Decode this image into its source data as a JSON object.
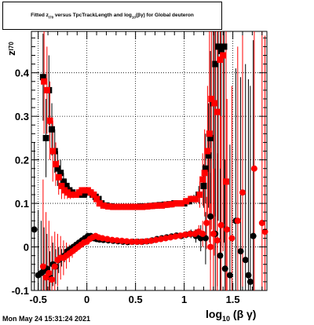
{
  "title": {
    "part1": "Fitted  z",
    "sub1": "I70",
    "part2": "  versus  TpcTrackLength and log",
    "sub2": "10",
    "part3": "(βγ) for Global deuteron"
  },
  "ylabel": {
    "main": "z",
    "sub": "I70"
  },
  "xlabel": {
    "main": "log",
    "sub": "10",
    "rest": "(β γ)"
  },
  "timestamp": "Mon May 24 15:31:24 2021",
  "chart_data": {
    "type": "scatter",
    "xlim": [
      -0.57,
      1.85
    ],
    "ylim": [
      -0.1,
      0.495
    ],
    "grid": true,
    "x_ticks": [
      -0.5,
      0,
      0.5,
      1,
      1.5
    ],
    "x_tick_labels": [
      "-0.5",
      "0",
      "0.5",
      "1",
      "1.5"
    ],
    "y_ticks": [
      -0.1,
      0,
      0.1,
      0.2,
      0.3,
      0.4
    ],
    "y_tick_labels": [
      "-0.1",
      "0",
      "0.1",
      "0.2",
      "0.3",
      "0.4"
    ],
    "series": [
      {
        "marker": "square",
        "color": "#000000",
        "x": [
          -0.45,
          -0.42,
          -0.39,
          -0.36,
          -0.33,
          -0.3,
          -0.27,
          -0.24,
          -0.21,
          -0.18,
          -0.15,
          -0.12,
          -0.09,
          -0.06,
          -0.03,
          0.0,
          0.03,
          0.06,
          0.09,
          0.12,
          0.15,
          0.2,
          0.25,
          0.3,
          0.35,
          0.4,
          0.45,
          0.5,
          0.55,
          0.6,
          0.65,
          0.7,
          0.75,
          0.8,
          0.85,
          0.9,
          0.95,
          1.0,
          1.05,
          1.1,
          1.15,
          1.2,
          1.22,
          1.25,
          1.27,
          1.3,
          1.32,
          1.35,
          1.38,
          1.41
        ],
        "y": [
          0.39,
          0.25,
          0.36,
          0.27,
          0.22,
          0.18,
          0.17,
          0.15,
          0.14,
          0.13,
          0.125,
          0.12,
          0.12,
          0.125,
          0.12,
          0.125,
          0.125,
          0.12,
          0.115,
          0.11,
          0.1,
          0.095,
          0.093,
          0.092,
          0.092,
          0.092,
          0.092,
          0.092,
          0.093,
          0.093,
          0.094,
          0.095,
          0.096,
          0.097,
          0.098,
          0.1,
          0.1,
          0.1,
          0.105,
          0.11,
          0.12,
          0.14,
          0.18,
          0.21,
          0.25,
          0.33,
          0.42,
          0.46,
          0.45,
          0.46
        ],
        "yerr": [
          0.1,
          0.09,
          0.08,
          0.06,
          0.05,
          0.04,
          0.03,
          0.02,
          0.015,
          0.01,
          0.008,
          0.006,
          0.005,
          0.004,
          0.004,
          0.003,
          0.003,
          0.003,
          0.003,
          0.003,
          0.003,
          0.003,
          0.003,
          0.003,
          0.003,
          0.003,
          0.003,
          0.003,
          0.003,
          0.003,
          0.003,
          0.003,
          0.003,
          0.003,
          0.004,
          0.004,
          0.005,
          0.006,
          0.008,
          0.01,
          0.02,
          0.05,
          0.08,
          0.12,
          0.2,
          0.3,
          0.35,
          0.4,
          0.45,
          0.45
        ]
      },
      {
        "marker": "square",
        "color": "#ff0000",
        "x": [
          -0.44,
          -0.41,
          -0.38,
          -0.35,
          -0.32,
          -0.29,
          -0.26,
          -0.23,
          -0.2,
          -0.17,
          -0.14,
          -0.11,
          -0.08,
          -0.05,
          -0.02,
          0.01,
          0.04,
          0.07,
          0.1,
          0.13,
          0.17,
          0.22,
          0.27,
          0.32,
          0.37,
          0.42,
          0.47,
          0.52,
          0.57,
          0.62,
          0.67,
          0.72,
          0.77,
          0.82,
          0.87,
          0.92,
          0.97,
          1.02,
          1.07,
          1.12,
          1.16,
          1.19,
          1.21,
          1.24,
          1.26,
          1.28,
          1.31,
          1.34,
          1.37,
          1.4,
          1.43
        ],
        "y": [
          0.38,
          0.36,
          0.29,
          0.22,
          0.19,
          0.16,
          0.14,
          0.13,
          0.125,
          0.12,
          0.12,
          0.12,
          0.125,
          0.13,
          0.13,
          0.13,
          0.125,
          0.12,
          0.11,
          0.1,
          0.095,
          0.093,
          0.092,
          0.092,
          0.092,
          0.092,
          0.092,
          0.092,
          0.092,
          0.093,
          0.094,
          0.095,
          0.095,
          0.097,
          0.098,
          0.1,
          0.1,
          0.105,
          0.11,
          0.11,
          0.12,
          0.155,
          0.17,
          0.22,
          0.26,
          0.34,
          0.33,
          0.31,
          0.43,
          0.44,
          0.15
        ],
        "yerr": [
          0.12,
          0.1,
          0.09,
          0.07,
          0.05,
          0.04,
          0.03,
          0.02,
          0.015,
          0.01,
          0.008,
          0.006,
          0.005,
          0.004,
          0.004,
          0.003,
          0.003,
          0.003,
          0.003,
          0.003,
          0.003,
          0.003,
          0.003,
          0.003,
          0.003,
          0.003,
          0.003,
          0.003,
          0.003,
          0.003,
          0.003,
          0.003,
          0.003,
          0.003,
          0.004,
          0.004,
          0.005,
          0.006,
          0.008,
          0.01,
          0.03,
          0.06,
          0.1,
          0.15,
          0.25,
          0.3,
          0.35,
          0.4,
          0.45,
          0.45,
          0.45
        ]
      },
      {
        "marker": "circle",
        "color": "#000000",
        "x": [
          -0.54,
          -0.5,
          -0.47,
          -0.44,
          -0.41,
          -0.38,
          -0.35,
          -0.32,
          -0.29,
          -0.26,
          -0.23,
          -0.2,
          -0.17,
          -0.14,
          -0.11,
          -0.08,
          -0.05,
          -0.02,
          0.01,
          0.04,
          0.07,
          0.1,
          0.13,
          0.17,
          0.22,
          0.27,
          0.32,
          0.37,
          0.42,
          0.47,
          0.52,
          0.57,
          0.62,
          0.67,
          0.72,
          0.77,
          0.82,
          0.87,
          0.92,
          0.97,
          1.02,
          1.07,
          1.12,
          1.17,
          1.22,
          1.27,
          1.32,
          1.37,
          1.42,
          1.47,
          1.53,
          1.58,
          1.63,
          1.66,
          1.68,
          1.71
        ],
        "y": [
          0.04,
          -0.065,
          -0.06,
          -0.055,
          -0.05,
          -0.07,
          -0.04,
          -0.045,
          -0.03,
          -0.025,
          -0.02,
          -0.01,
          -0.005,
          0.0,
          0.005,
          0.01,
          0.015,
          0.02,
          0.025,
          0.025,
          0.02,
          0.018,
          0.017,
          0.016,
          0.015,
          0.014,
          0.013,
          0.012,
          0.011,
          0.012,
          0.012,
          0.012,
          0.013,
          0.015,
          0.018,
          0.02,
          0.022,
          0.024,
          0.026,
          0.025,
          0.028,
          0.03,
          0.025,
          0.02,
          0.02,
          0.07,
          0.03,
          -0.02,
          -0.05,
          -0.065,
          0.06,
          -0.01,
          -0.03,
          -0.065,
          -0.08,
          0.025
        ],
        "yerr": [
          0.2,
          0.15,
          0.12,
          0.1,
          0.08,
          0.06,
          0.05,
          0.04,
          0.03,
          0.02,
          0.015,
          0.01,
          0.008,
          0.006,
          0.005,
          0.004,
          0.003,
          0.003,
          0.003,
          0.003,
          0.003,
          0.003,
          0.003,
          0.003,
          0.003,
          0.003,
          0.003,
          0.003,
          0.003,
          0.003,
          0.003,
          0.003,
          0.003,
          0.003,
          0.003,
          0.003,
          0.004,
          0.004,
          0.005,
          0.006,
          0.008,
          0.01,
          0.015,
          0.03,
          0.06,
          0.1,
          0.15,
          0.2,
          0.25,
          0.3,
          0.35,
          0.4,
          0.45,
          0.45,
          0.45,
          0.45
        ]
      },
      {
        "marker": "circle",
        "color": "#ff0000",
        "x": [
          -0.45,
          -0.42,
          -0.39,
          -0.36,
          -0.33,
          -0.3,
          -0.27,
          -0.24,
          -0.21,
          -0.18,
          -0.15,
          -0.12,
          -0.09,
          -0.06,
          -0.03,
          0.0,
          0.03,
          0.06,
          0.09,
          0.12,
          0.16,
          0.21,
          0.26,
          0.31,
          0.36,
          0.41,
          0.46,
          0.51,
          0.56,
          0.61,
          0.66,
          0.71,
          0.76,
          0.81,
          0.86,
          0.91,
          0.96,
          1.01,
          1.06,
          1.11,
          1.15,
          1.19,
          1.23,
          1.27,
          1.3,
          1.34,
          1.38,
          1.44,
          1.49,
          1.55,
          1.6,
          1.72,
          1.8,
          1.83
        ],
        "y": [
          -0.045,
          -0.07,
          -0.06,
          -0.075,
          -0.045,
          -0.03,
          -0.025,
          -0.025,
          -0.02,
          -0.015,
          -0.01,
          -0.005,
          0.0,
          0.005,
          0.01,
          0.012,
          0.018,
          0.022,
          0.025,
          0.022,
          0.02,
          0.018,
          0.016,
          0.015,
          0.014,
          0.013,
          0.012,
          0.012,
          0.012,
          0.013,
          0.014,
          0.016,
          0.018,
          0.02,
          0.022,
          0.024,
          0.026,
          0.028,
          0.03,
          0.03,
          0.035,
          0.03,
          0.055,
          0.0,
          0.03,
          0.015,
          0.05,
          0.04,
          0.02,
          0.06,
          0.125,
          0.18,
          0.055,
          0.035
        ],
        "yerr": [
          0.2,
          0.15,
          0.12,
          0.1,
          0.08,
          0.06,
          0.05,
          0.04,
          0.03,
          0.02,
          0.015,
          0.01,
          0.008,
          0.006,
          0.005,
          0.004,
          0.003,
          0.003,
          0.003,
          0.003,
          0.003,
          0.003,
          0.003,
          0.003,
          0.003,
          0.003,
          0.003,
          0.003,
          0.003,
          0.003,
          0.003,
          0.003,
          0.003,
          0.003,
          0.004,
          0.004,
          0.005,
          0.006,
          0.008,
          0.01,
          0.015,
          0.03,
          0.06,
          0.1,
          0.15,
          0.2,
          0.25,
          0.3,
          0.35,
          0.4,
          0.45,
          0.45,
          0.45,
          0.45
        ]
      }
    ]
  }
}
